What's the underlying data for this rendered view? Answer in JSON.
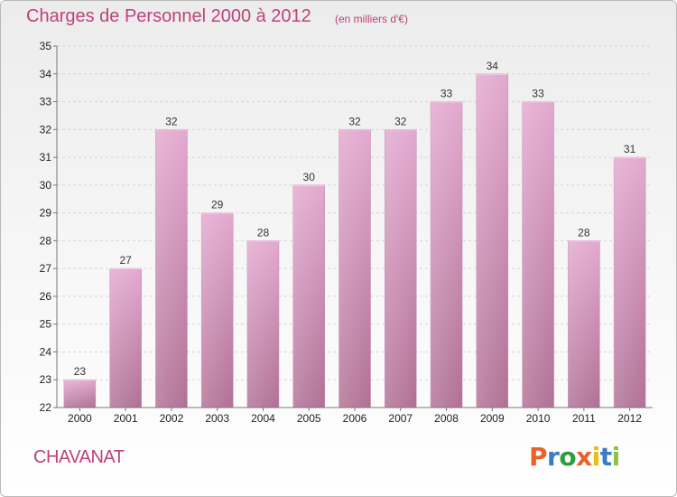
{
  "header": {
    "title": "Charges de Personnel 2000 à 2012",
    "subtitle": "(en milliers d'€)"
  },
  "footer": {
    "commune": "CHAVANAT",
    "logo_text": "Proxiti",
    "logo_colors": [
      "#e8622a",
      "#3a7cc3",
      "#2e9e3e",
      "#e8622a",
      "#f2b90f",
      "#3a7cc3",
      "#8bc43f"
    ]
  },
  "chart_data": {
    "type": "bar",
    "title": "Charges de Personnel 2000 à 2012",
    "subtitle": "(en milliers d'€)",
    "xlabel": "",
    "ylabel": "",
    "categories": [
      "2000",
      "2001",
      "2002",
      "2003",
      "2004",
      "2005",
      "2006",
      "2007",
      "2008",
      "2009",
      "2010",
      "2011",
      "2012"
    ],
    "values": [
      23,
      27,
      32,
      29,
      28,
      30,
      32,
      32,
      33,
      34,
      33,
      28,
      31
    ],
    "ylim": [
      22,
      35
    ],
    "yticks": [
      22,
      23,
      24,
      25,
      26,
      27,
      28,
      29,
      30,
      31,
      32,
      33,
      34,
      35
    ],
    "grid": true,
    "bar_color_top": "#e3a8cf",
    "bar_color_bottom": "#b07094",
    "grid_color": "#d4d4d4",
    "text_color": "#c0407a"
  }
}
